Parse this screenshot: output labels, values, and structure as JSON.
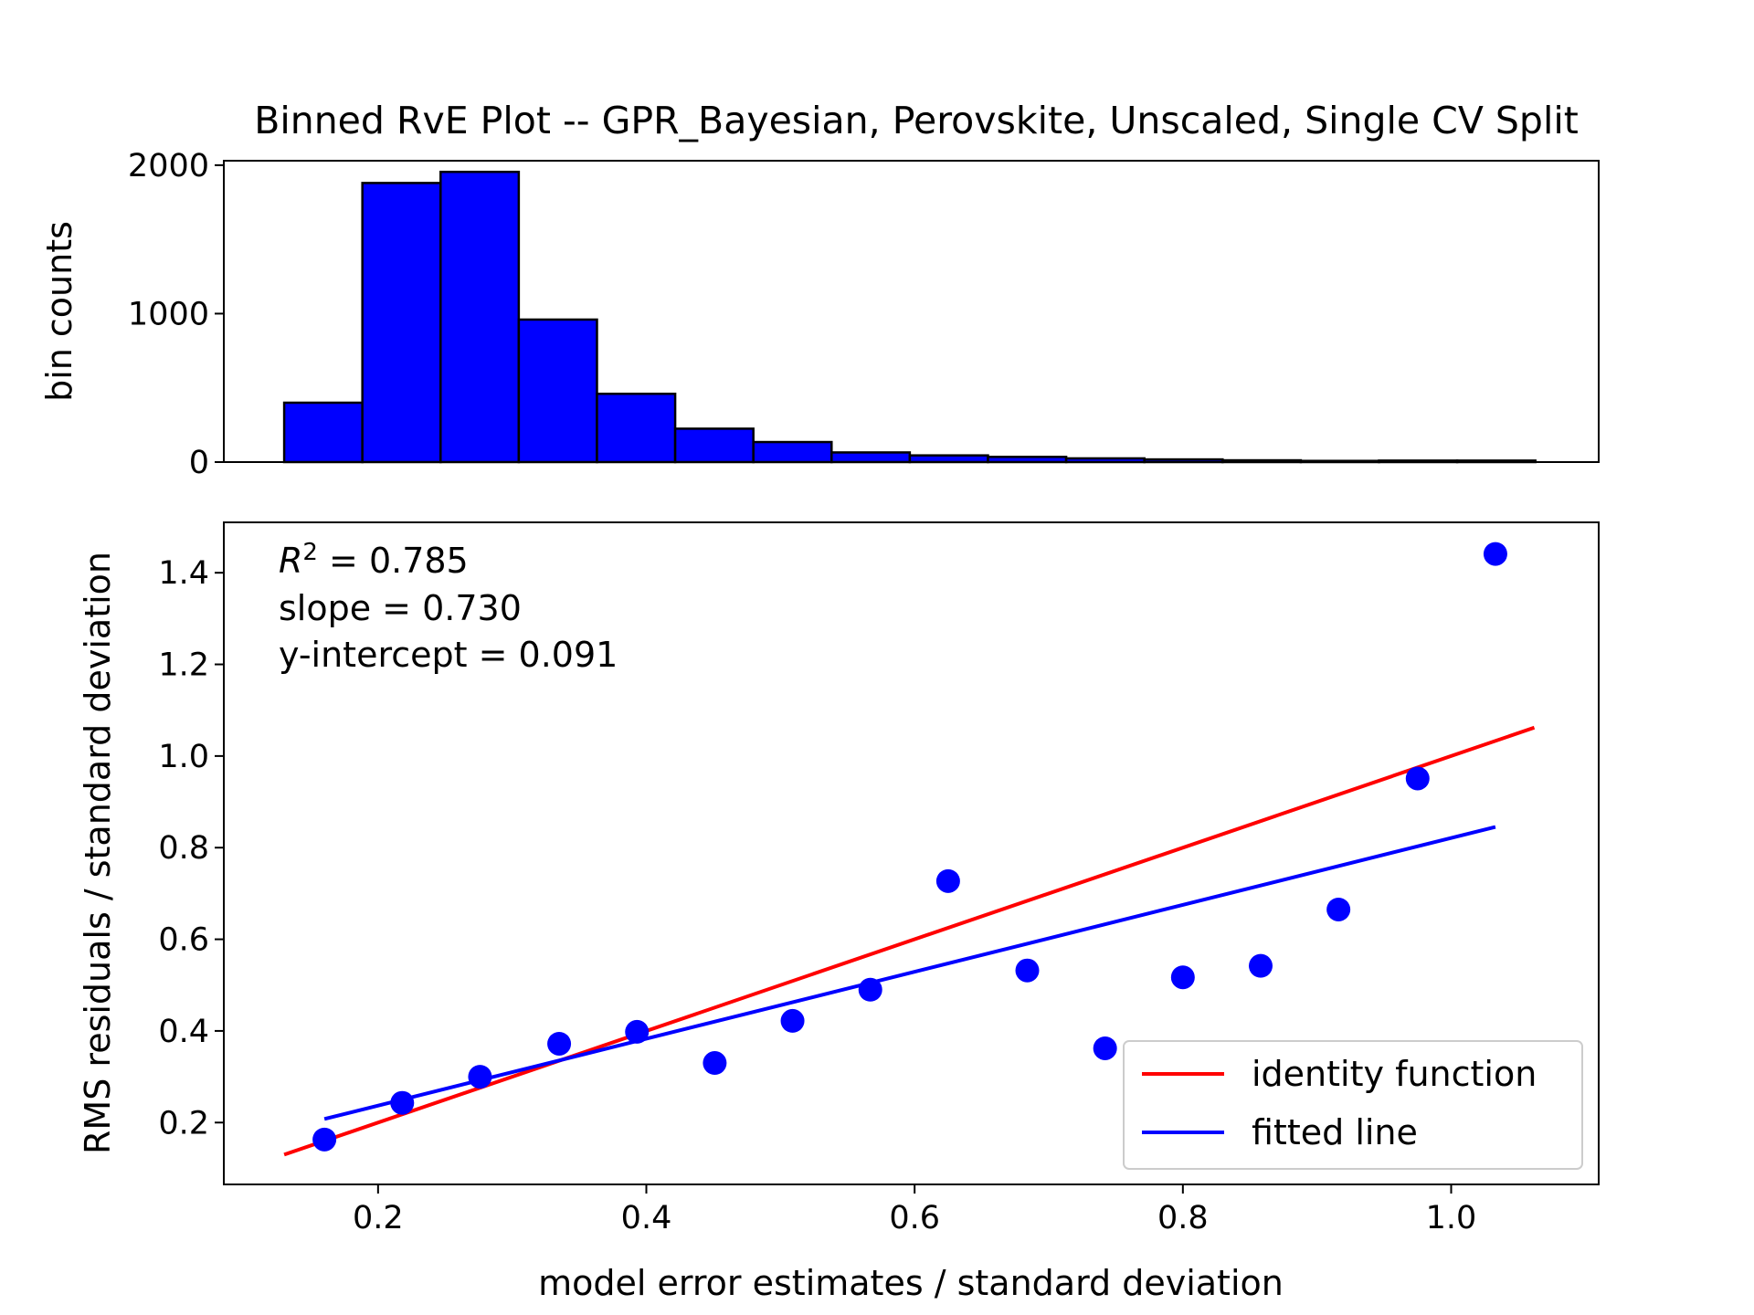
{
  "chart_data": [
    {
      "type": "bar",
      "title": "Binned RvE Plot -- GPR_Bayesian, Perovskite, Unscaled, Single CV Split",
      "xlabel": "",
      "ylabel": "bin counts",
      "xlim": [
        0.085,
        1.11
      ],
      "ylim": [
        0,
        2030
      ],
      "yticks": [
        0,
        1000,
        2000
      ],
      "bin_edges": [
        0.13,
        0.1883,
        0.2466,
        0.3049,
        0.3632,
        0.4215,
        0.4798,
        0.5381,
        0.5964,
        0.6547,
        0.713,
        0.7713,
        0.8296,
        0.8879,
        0.9462,
        1.0045,
        1.0628
      ],
      "values": [
        400,
        1880,
        1955,
        960,
        460,
        225,
        135,
        65,
        45,
        35,
        25,
        18,
        12,
        8,
        10,
        10
      ],
      "bar_color": "#0000ff",
      "edge_color": "#000000",
      "grid": false
    },
    {
      "type": "scatter",
      "xlabel": "model error estimates / standard deviation",
      "ylabel": "RMS residuals / standard deviation",
      "xlim": [
        0.085,
        1.11
      ],
      "ylim": [
        0.065,
        1.51
      ],
      "xticks": [
        "0.2",
        "0.4",
        "0.6",
        "0.8",
        "1.0"
      ],
      "yticks": [
        "0.2",
        "0.4",
        "0.6",
        "0.8",
        "1.0",
        "1.2",
        "1.4"
      ],
      "points": {
        "x": [
          0.16,
          0.218,
          0.276,
          0.335,
          0.393,
          0.451,
          0.509,
          0.567,
          0.625,
          0.684,
          0.742,
          0.8,
          0.858,
          0.916,
          0.975,
          1.033
        ],
        "y": [
          0.163,
          0.243,
          0.3,
          0.372,
          0.398,
          0.33,
          0.422,
          0.49,
          0.727,
          0.532,
          0.362,
          0.517,
          0.542,
          0.665,
          0.951,
          1.441
        ],
        "color": "#0000ff"
      },
      "series": [
        {
          "name": "identity function",
          "x": [
            0.13,
            1.062
          ],
          "y": [
            0.13,
            1.062
          ],
          "color": "#ff0000"
        },
        {
          "name": "fitted line",
          "x": [
            0.16,
            1.033
          ],
          "y": [
            0.2078,
            0.8452
          ],
          "color": "#0000ff"
        }
      ],
      "annotations": {
        "r2_value": " = 0.785",
        "slope": "slope = 0.730",
        "intercept": "y-intercept = 0.091"
      },
      "legend_position": "lower right",
      "grid": false
    }
  ]
}
